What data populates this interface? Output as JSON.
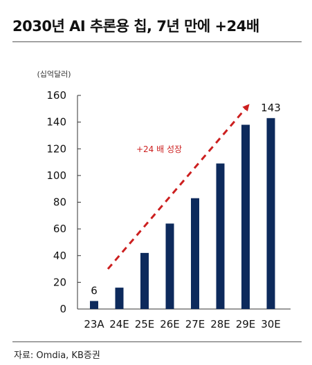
{
  "title": "2030년 AI 추론용 칩, 7년 만에 +24배",
  "source": "자료: Omdia, KB증권",
  "chart_data": {
    "type": "bar",
    "categories": [
      "23A",
      "24E",
      "25E",
      "26E",
      "27E",
      "28E",
      "29E",
      "30E"
    ],
    "values": [
      6,
      16,
      42,
      64,
      83,
      109,
      138,
      143
    ],
    "unit_label": "(십억달러)",
    "ylim": [
      0,
      160
    ],
    "yticks": [
      0,
      20,
      40,
      60,
      80,
      100,
      120,
      140,
      160
    ],
    "bar_color": "#0d2a5c",
    "data_labels": [
      {
        "index": 0,
        "text": "6"
      },
      {
        "index": 7,
        "text": "143"
      }
    ],
    "annotation": {
      "text": "+24 배 성장",
      "color": "#cc1f1f",
      "arrow_from": {
        "x": "23A",
        "y": 30
      },
      "arrow_to": {
        "x": "29E",
        "y": 152
      }
    },
    "grid": false,
    "legend": "none"
  }
}
